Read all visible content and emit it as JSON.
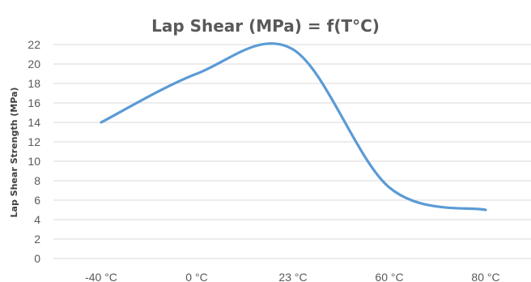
{
  "chart_data": {
    "type": "line",
    "title": "Lap Shear (MPa) = f(T°C)",
    "xlabel": "",
    "ylabel": "Lap Shear Strength (MPa)",
    "categories": [
      "-40 °C",
      "0 °C",
      "23 °C",
      "60 °C",
      "80 °C"
    ],
    "x": [
      -40,
      0,
      23,
      60,
      80
    ],
    "ylim": [
      0,
      22
    ],
    "yticks": [
      0,
      2,
      4,
      6,
      8,
      10,
      12,
      14,
      16,
      18,
      20,
      22
    ],
    "grid": true,
    "smooth": true,
    "series": [
      {
        "values": [
          14.0,
          19.0,
          21.5,
          7.3,
          5.0
        ],
        "color": "#5b9bd5"
      }
    ]
  }
}
